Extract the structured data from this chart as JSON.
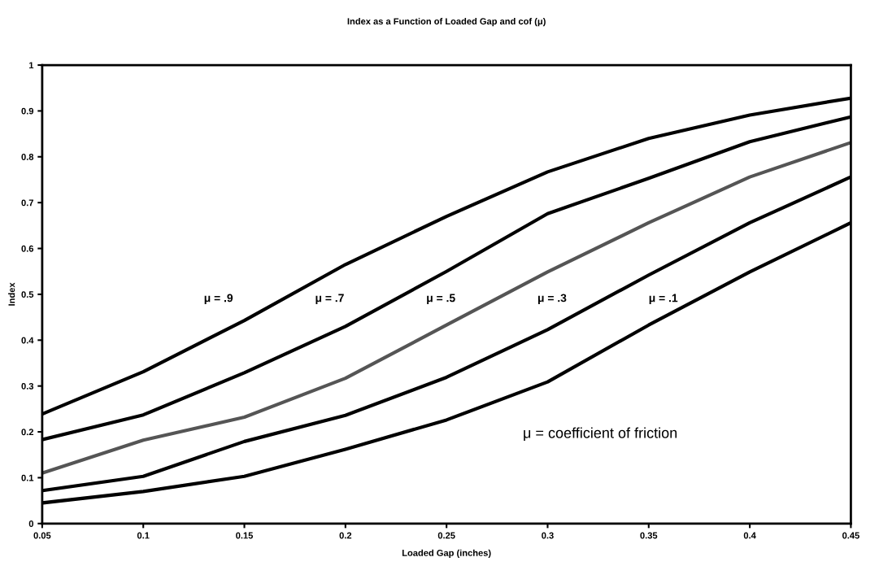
{
  "chart_data": {
    "type": "line",
    "title": "Index as a Function of Loaded Gap and cof (μ)",
    "xlabel": "Loaded Gap (inches)",
    "ylabel": "Index",
    "x": [
      0.05,
      0.1,
      0.15,
      0.2,
      0.25,
      0.3,
      0.35,
      0.4,
      0.45
    ],
    "series": [
      {
        "color": "#000000",
        "values": [
          0.239,
          0.331,
          0.443,
          0.565,
          0.67,
          0.767,
          0.84,
          0.891,
          0.928
        ]
      },
      {
        "color": "#000000",
        "values": [
          0.183,
          0.237,
          0.329,
          0.43,
          0.55,
          0.676,
          0.753,
          0.833,
          0.887
        ]
      },
      {
        "color": "#555555",
        "values": [
          0.11,
          0.182,
          0.232,
          0.317,
          0.433,
          0.549,
          0.656,
          0.756,
          0.831
        ]
      },
      {
        "color": "#000000",
        "values": [
          0.072,
          0.103,
          0.179,
          0.236,
          0.319,
          0.423,
          0.542,
          0.656,
          0.756
        ]
      },
      {
        "color": "#000000",
        "values": [
          0.045,
          0.07,
          0.103,
          0.162,
          0.226,
          0.309,
          0.433,
          0.549,
          0.656
        ]
      }
    ],
    "annotations": [
      "μ = .9",
      "μ = .7",
      "μ = .5",
      "μ = .3",
      "μ = .1",
      "μ = coefficient of friction"
    ],
    "xlim": [
      0.05,
      0.45
    ],
    "xticks": [
      0.05,
      0.1,
      0.15,
      0.2,
      0.25,
      0.3,
      0.35,
      0.4,
      0.45
    ],
    "ylim": [
      0,
      1
    ],
    "yticks": [
      0,
      0.1,
      0.2,
      0.3,
      0.4,
      0.5,
      0.6,
      0.7,
      0.8,
      0.9,
      1
    ],
    "grid": false,
    "legend": false,
    "marker": "none",
    "line_style": "solid"
  }
}
